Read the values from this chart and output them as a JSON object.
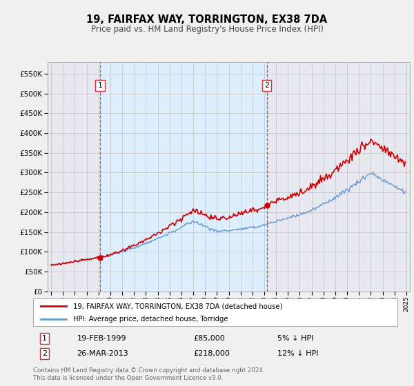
{
  "title": "19, FAIRFAX WAY, TORRINGTON, EX38 7DA",
  "subtitle": "Price paid vs. HM Land Registry's House Price Index (HPI)",
  "legend_line1": "19, FAIRFAX WAY, TORRINGTON, EX38 7DA (detached house)",
  "legend_line2": "HPI: Average price, detached house, Torridge",
  "annotation1_label": "1",
  "annotation1_date": "19-FEB-1999",
  "annotation1_price": 85000,
  "annotation1_note": "5% ↓ HPI",
  "annotation1_year": 1999.12,
  "annotation2_label": "2",
  "annotation2_date": "26-MAR-2013",
  "annotation2_price": 218000,
  "annotation2_note": "12% ↓ HPI",
  "annotation2_year": 2013.21,
  "line_color_property": "#cc0000",
  "line_color_hpi": "#6699cc",
  "vline_color": "#cc3333",
  "shade_color": "#ddeeff",
  "grid_color": "#cccccc",
  "background_color": "#f0f0f0",
  "plot_bg_color": "#e8e8f0",
  "footer": "Contains HM Land Registry data © Crown copyright and database right 2024.\nThis data is licensed under the Open Government Licence v3.0.",
  "ylim": [
    0,
    580000
  ],
  "xlim_start": 1994.7,
  "xlim_end": 2025.3
}
